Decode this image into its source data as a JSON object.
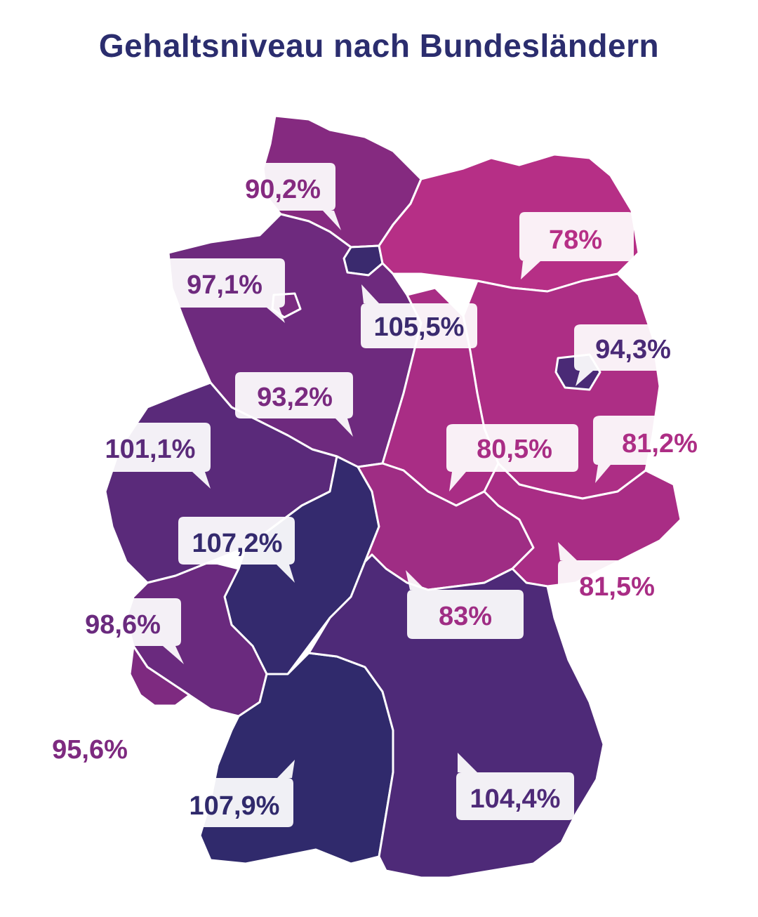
{
  "title": "Gehaltsniveau nach Bundesländern",
  "colors": {
    "title": "#2b2d6e",
    "high": "#2f2a6c",
    "mid_high": "#4e2a78",
    "mid": "#6a2a7e",
    "mid_low": "#822a80",
    "low": "#a62d84",
    "lowest": "#b62f86"
  },
  "states": [
    {
      "id": "sh",
      "value": "90,2%",
      "color": "#852a80"
    },
    {
      "id": "hh",
      "value": "105,5%",
      "color": "#3a2a6e"
    },
    {
      "id": "mv",
      "value": "78%",
      "color": "#b62f86"
    },
    {
      "id": "ni",
      "value": "97,1%",
      "color": "#6e2a7e"
    },
    {
      "id": "hb",
      "value": "93,2%",
      "color": "#7a2a80"
    },
    {
      "id": "be",
      "value": "94,3%",
      "color": "#4a2a76"
    },
    {
      "id": "bb",
      "value": "81,2%",
      "color": "#ad2e85"
    },
    {
      "id": "st",
      "value": "80,5%",
      "color": "#a92d85"
    },
    {
      "id": "nw",
      "value": "101,1%",
      "color": "#5a2a7a"
    },
    {
      "id": "he",
      "value": "107,2%",
      "color": "#342a6e"
    },
    {
      "id": "th",
      "value": "83%",
      "color": "#9f2d84"
    },
    {
      "id": "sn",
      "value": "81,5%",
      "color": "#a92d85"
    },
    {
      "id": "rp",
      "value": "98,6%",
      "color": "#6a2a7e"
    },
    {
      "id": "sl",
      "value": "95,6%",
      "color": "#7e2a80"
    },
    {
      "id": "bw",
      "value": "107,9%",
      "color": "#302a6c"
    },
    {
      "id": "by",
      "value": "104,4%",
      "color": "#4e2a78"
    }
  ]
}
